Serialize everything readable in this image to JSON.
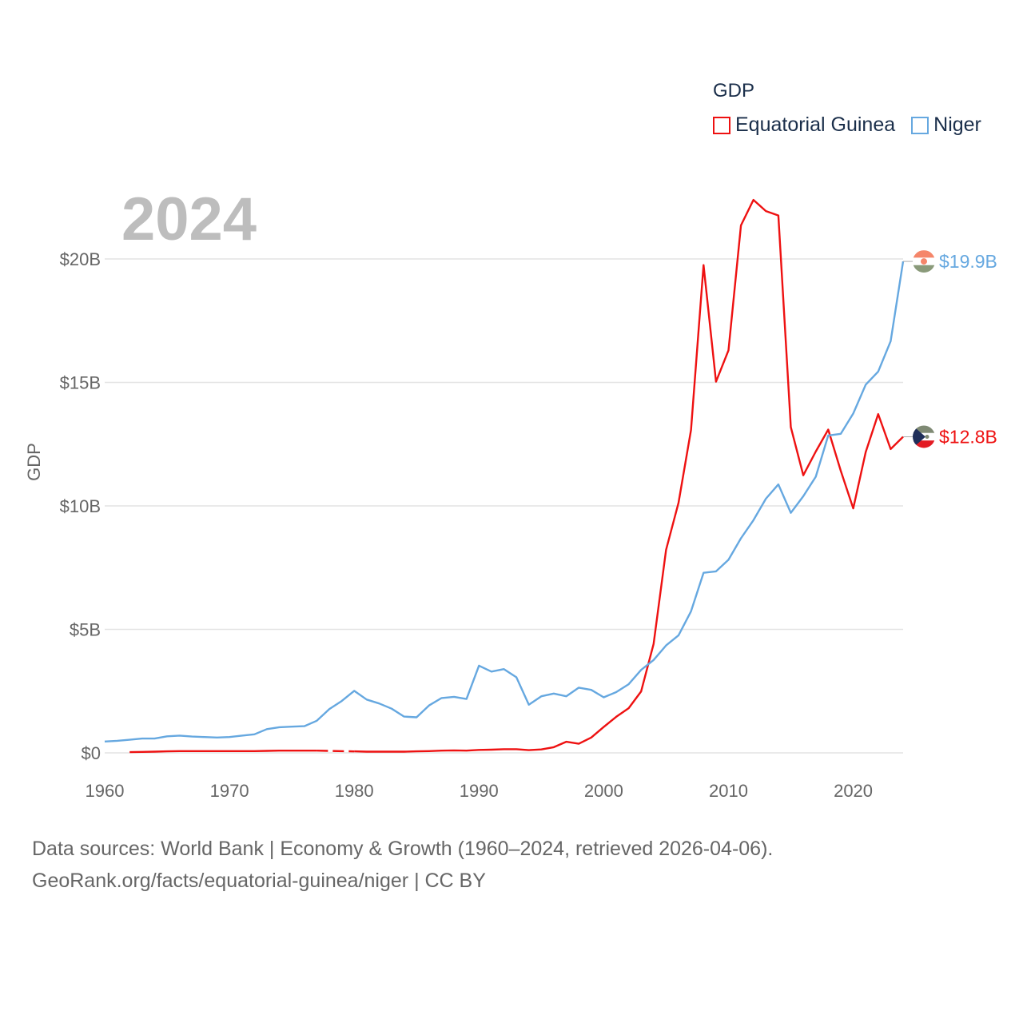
{
  "legend": {
    "title": "GDP"
  },
  "chart_data": {
    "type": "line",
    "title": "GDP",
    "year_label": "2024",
    "xlabel": "",
    "ylabel": "GDP",
    "xlim": [
      1960,
      2024
    ],
    "ylim": [
      0,
      22.5
    ],
    "y_ticks": [
      {
        "value": 0,
        "label": "$0"
      },
      {
        "value": 5,
        "label": "$5B"
      },
      {
        "value": 10,
        "label": "$10B"
      },
      {
        "value": 15,
        "label": "$15B"
      },
      {
        "value": 20,
        "label": "$20B"
      }
    ],
    "x_ticks": [
      {
        "value": 1960,
        "label": "1960"
      },
      {
        "value": 1970,
        "label": "1970"
      },
      {
        "value": 1980,
        "label": "1980"
      },
      {
        "value": 1990,
        "label": "1990"
      },
      {
        "value": 2000,
        "label": "2000"
      },
      {
        "value": 2010,
        "label": "2010"
      },
      {
        "value": 2020,
        "label": "2020"
      }
    ],
    "series": [
      {
        "name": "Equatorial Guinea",
        "color": "#ee1111",
        "end_label": "$12.8B",
        "gap": [
          1977,
          1980
        ],
        "x": [
          1962,
          1963,
          1964,
          1965,
          1966,
          1967,
          1968,
          1969,
          1970,
          1971,
          1972,
          1973,
          1974,
          1975,
          1976,
          1977,
          1980,
          1981,
          1982,
          1983,
          1984,
          1985,
          1986,
          1987,
          1988,
          1989,
          1990,
          1991,
          1992,
          1993,
          1994,
          1995,
          1996,
          1997,
          1998,
          1999,
          2000,
          2001,
          2002,
          2003,
          2004,
          2005,
          2006,
          2007,
          2008,
          2009,
          2010,
          2011,
          2012,
          2013,
          2014,
          2015,
          2016,
          2017,
          2018,
          2019,
          2020,
          2021,
          2022,
          2023,
          2024
        ],
        "values": [
          0.03,
          0.04,
          0.05,
          0.06,
          0.07,
          0.07,
          0.07,
          0.07,
          0.07,
          0.07,
          0.07,
          0.08,
          0.09,
          0.09,
          0.09,
          0.09,
          0.06,
          0.05,
          0.05,
          0.05,
          0.05,
          0.06,
          0.07,
          0.09,
          0.1,
          0.09,
          0.12,
          0.13,
          0.15,
          0.15,
          0.11,
          0.14,
          0.23,
          0.45,
          0.37,
          0.62,
          1.05,
          1.46,
          1.81,
          2.49,
          4.41,
          8.22,
          10.13,
          13.07,
          19.75,
          15.03,
          16.3,
          21.36,
          22.39,
          21.94,
          21.76,
          13.19,
          11.24,
          12.2,
          13.09,
          11.42,
          9.9,
          12.18,
          13.72,
          12.3,
          12.8
        ]
      },
      {
        "name": "Niger",
        "color": "#66a8e0",
        "end_label": "$19.9B",
        "x": [
          1960,
          1961,
          1962,
          1963,
          1964,
          1965,
          1966,
          1967,
          1968,
          1969,
          1970,
          1971,
          1972,
          1973,
          1974,
          1975,
          1976,
          1977,
          1978,
          1979,
          1980,
          1981,
          1982,
          1983,
          1984,
          1985,
          1986,
          1987,
          1988,
          1989,
          1990,
          1991,
          1992,
          1993,
          1994,
          1995,
          1996,
          1997,
          1998,
          1999,
          2000,
          2001,
          2002,
          2003,
          2004,
          2005,
          2006,
          2007,
          2008,
          2009,
          2010,
          2011,
          2012,
          2013,
          2014,
          2015,
          2016,
          2017,
          2018,
          2019,
          2020,
          2021,
          2022,
          2023,
          2024
        ],
        "values": [
          0.46,
          0.49,
          0.53,
          0.58,
          0.58,
          0.67,
          0.7,
          0.66,
          0.64,
          0.62,
          0.64,
          0.7,
          0.75,
          0.96,
          1.04,
          1.06,
          1.08,
          1.3,
          1.77,
          2.1,
          2.51,
          2.16,
          2.0,
          1.79,
          1.47,
          1.44,
          1.92,
          2.22,
          2.27,
          2.18,
          3.53,
          3.29,
          3.39,
          3.06,
          1.95,
          2.29,
          2.4,
          2.29,
          2.64,
          2.55,
          2.25,
          2.46,
          2.78,
          3.36,
          3.76,
          4.35,
          4.76,
          5.73,
          7.29,
          7.35,
          7.82,
          8.69,
          9.42,
          10.29,
          10.87,
          9.72,
          10.39,
          11.18,
          12.85,
          12.92,
          13.74,
          14.91,
          15.44,
          16.67,
          19.9
        ]
      }
    ]
  },
  "footer": {
    "line1": "Data sources: World Bank | Economy & Growth (1960–2024, retrieved 2026-04-06).",
    "line2": "GeoRank.org/facts/equatorial-guinea/niger | CC BY"
  }
}
